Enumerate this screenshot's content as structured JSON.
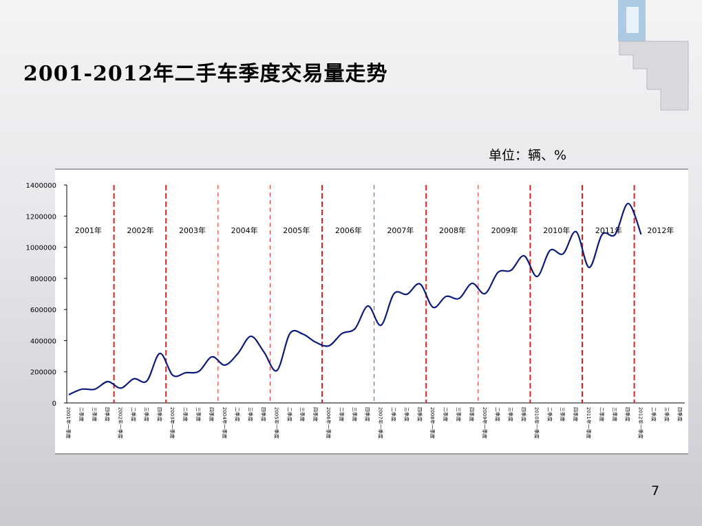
{
  "title": "2001-2012年二手车季度交易量走势",
  "unit": "单位：辆、%",
  "page_number": "7",
  "chart_data": {
    "type": "line",
    "categories": [
      "2001年一季度",
      "二季度",
      "三季度",
      "四季度",
      "2002年一季度",
      "二季度",
      "三季度",
      "四季度",
      "2003年一季度",
      "二季度",
      "三季度",
      "四季度",
      "2004年一季度",
      "二季度",
      "三季度",
      "四季度",
      "2005年一季度",
      "二季度",
      "三季度",
      "四季度",
      "2006年一季度",
      "二季度",
      "三季度",
      "四季度",
      "2007年一季度",
      "二季度",
      "三季度",
      "四季度",
      "2008年一季度",
      "二季度",
      "三季度",
      "四季度",
      "2009年一季度",
      "二季度",
      "三季度",
      "四季度",
      "2010年一季度",
      "二季度",
      "三季度",
      "四季度",
      "2011年一季度",
      "二季度",
      "三季度",
      "四季度",
      "2012年一季度",
      "二季度",
      "三季度",
      "四季度"
    ],
    "series": [
      {
        "name": "二手车季度交易量",
        "color": "#0a1a7a",
        "values": [
          53000,
          88000,
          88000,
          137000,
          95000,
          155000,
          141000,
          318000,
          177000,
          194000,
          203000,
          296000,
          243000,
          318000,
          428000,
          327000,
          208000,
          446000,
          442000,
          389000,
          367000,
          446000,
          477000,
          623000,
          499000,
          702000,
          698000,
          764000,
          614000,
          684000,
          671000,
          768000,
          702000,
          839000,
          852000,
          945000,
          812000,
          980000,
          958000,
          1100000,
          870000,
          1082000,
          1082000,
          1281000,
          1082000,
          null,
          null,
          null
        ]
      }
    ],
    "year_labels": [
      "2001年",
      "2002年",
      "2003年",
      "2004年",
      "2005年",
      "2006年",
      "2007年",
      "2008年",
      "2009年",
      "2010年",
      "2011年",
      "2012年"
    ],
    "ylim": [
      0,
      1400000
    ],
    "yticks": [
      0,
      200000,
      400000,
      600000,
      800000,
      1000000,
      1200000,
      1400000
    ],
    "divider_color": "#e02020"
  }
}
